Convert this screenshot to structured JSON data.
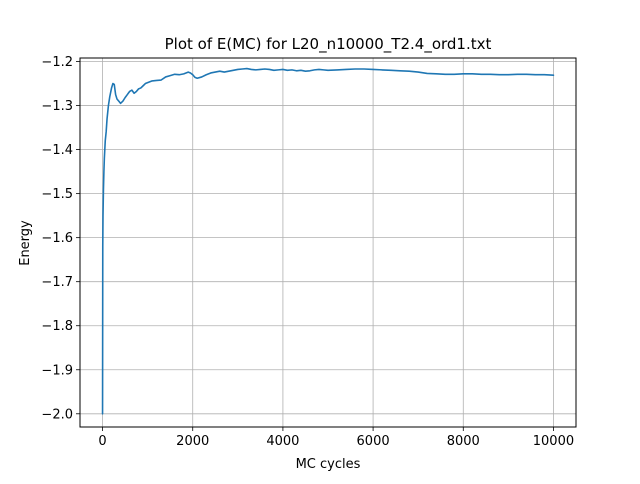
{
  "chart_data": {
    "type": "line",
    "title": "Plot of E(MC) for L20_n10000_T2.4_ord1.txt",
    "xlabel": "MC cycles",
    "ylabel": "Energy",
    "xlim": [
      -500,
      10500
    ],
    "ylim": [
      -2.03,
      -1.192
    ],
    "grid": true,
    "x_ticks": [
      0,
      2000,
      4000,
      6000,
      8000,
      10000
    ],
    "x_tick_labels": [
      "0",
      "2000",
      "4000",
      "6000",
      "8000",
      "10000"
    ],
    "y_ticks": [
      -2.0,
      -1.9,
      -1.8,
      -1.7,
      -1.6,
      -1.5,
      -1.4,
      -1.3,
      -1.2
    ],
    "y_tick_labels": [
      "−2.0",
      "−1.9",
      "−1.8",
      "−1.7",
      "−1.6",
      "−1.5",
      "−1.4",
      "−1.3",
      "−1.2"
    ],
    "colors": {
      "line": "#1f77b4",
      "grid": "#b0b0b0",
      "axes": "#000000"
    },
    "series": [
      {
        "values_x": [
          0,
          5,
          10,
          20,
          30,
          40,
          60,
          80,
          100,
          130,
          160,
          200,
          230,
          260,
          290,
          320,
          360,
          400,
          450,
          500,
          550,
          600,
          650,
          700,
          750,
          800,
          850,
          900,
          950,
          1000,
          1050,
          1100,
          1200,
          1300,
          1400,
          1500,
          1600,
          1700,
          1800,
          1900,
          1950,
          2000,
          2050,
          2100,
          2200,
          2300,
          2400,
          2500,
          2600,
          2700,
          2800,
          2900,
          3000,
          3100,
          3200,
          3300,
          3400,
          3500,
          3600,
          3700,
          3800,
          3900,
          4000,
          4100,
          4200,
          4300,
          4400,
          4500,
          4600,
          4700,
          4800,
          4900,
          5000,
          5200,
          5400,
          5600,
          5800,
          6000,
          6200,
          6400,
          6600,
          6800,
          7000,
          7200,
          7400,
          7600,
          7800,
          8000,
          8200,
          8400,
          8600,
          8800,
          9000,
          9200,
          9400,
          9600,
          9800,
          10000
        ],
        "values_y": [
          -2.0,
          -1.62,
          -1.55,
          -1.49,
          -1.45,
          -1.42,
          -1.38,
          -1.36,
          -1.33,
          -1.3,
          -1.28,
          -1.26,
          -1.25,
          -1.252,
          -1.275,
          -1.285,
          -1.29,
          -1.295,
          -1.29,
          -1.282,
          -1.275,
          -1.268,
          -1.265,
          -1.272,
          -1.268,
          -1.262,
          -1.26,
          -1.255,
          -1.25,
          -1.248,
          -1.246,
          -1.244,
          -1.243,
          -1.242,
          -1.235,
          -1.232,
          -1.229,
          -1.23,
          -1.228,
          -1.224,
          -1.226,
          -1.23,
          -1.236,
          -1.238,
          -1.235,
          -1.23,
          -1.226,
          -1.224,
          -1.222,
          -1.224,
          -1.222,
          -1.22,
          -1.218,
          -1.217,
          -1.216,
          -1.218,
          -1.219,
          -1.218,
          -1.217,
          -1.218,
          -1.22,
          -1.219,
          -1.218,
          -1.22,
          -1.219,
          -1.221,
          -1.22,
          -1.222,
          -1.221,
          -1.219,
          -1.218,
          -1.219,
          -1.22,
          -1.219,
          -1.218,
          -1.217,
          -1.217,
          -1.218,
          -1.219,
          -1.22,
          -1.221,
          -1.222,
          -1.224,
          -1.227,
          -1.228,
          -1.229,
          -1.229,
          -1.228,
          -1.228,
          -1.229,
          -1.229,
          -1.23,
          -1.23,
          -1.229,
          -1.229,
          -1.23,
          -1.23,
          -1.231
        ]
      }
    ]
  }
}
